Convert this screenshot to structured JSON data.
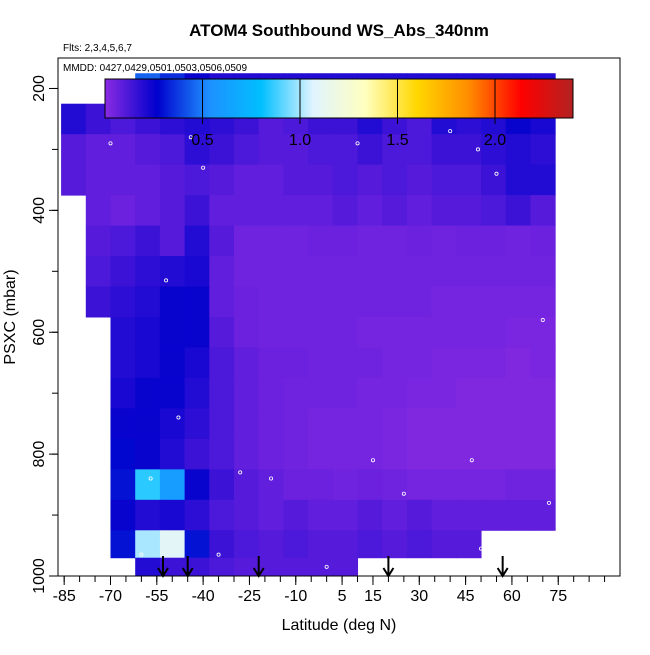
{
  "chart_data": {
    "type": "heatmap",
    "title": "ATOM4 Southbound WS_Abs_340nm",
    "subtitle_flights": "Flts: 2,3,4,5,6,7",
    "subtitle_dates": "MMDD: 0427,0429,0501,0503,0506,0509",
    "xlabel": "Latitude (deg N)",
    "ylabel": "PSXC (mbar)",
    "xlim": [
      -87,
      95
    ],
    "ylim": [
      1000,
      150
    ],
    "y_reversed": true,
    "x_ticks": [
      -85,
      -70,
      -55,
      -40,
      -25,
      -10,
      5,
      15,
      30,
      45,
      60,
      75
    ],
    "x_tick_labels": [
      "-85",
      "-70",
      "-55",
      "-40",
      "-25",
      "-10",
      "5",
      "15",
      "30",
      "45",
      "60",
      "75"
    ],
    "y_ticks": [
      200,
      400,
      600,
      800,
      1000
    ],
    "y_tick_labels": [
      "200",
      "400",
      "600",
      "800",
      "1000"
    ],
    "colorbar": {
      "range": [
        0,
        2.4
      ],
      "ticks": [
        0.5,
        1.0,
        1.5,
        2.0
      ],
      "tick_labels": [
        "0.5",
        "1.0",
        "1.5",
        "2.0"
      ],
      "colors": [
        "#8a2be2",
        "#0000cd",
        "#1e90ff",
        "#00bfff",
        "#e0f4ff",
        "#ffffc0",
        "#ffd700",
        "#ff8c00",
        "#ff0000",
        "#b22222"
      ]
    },
    "cross_section": {
      "note": "approximate gridded values of WS_Abs_340nm",
      "latitudes": [
        -82,
        -74,
        -66,
        -58,
        -50,
        -42,
        -34,
        -26,
        -18,
        -10,
        -2,
        6,
        14,
        22,
        30,
        38,
        46,
        54,
        62,
        70
      ],
      "pressures": [
        200,
        250,
        300,
        350,
        400,
        450,
        500,
        550,
        600,
        650,
        700,
        750,
        800,
        850,
        900,
        950,
        990
      ],
      "values": [
        [
          null,
          null,
          null,
          0.45,
          0.35,
          0.25,
          0.2,
          0.2,
          0.2,
          0.2,
          0.2,
          0.2,
          0.2,
          0.2,
          0.2,
          0.2,
          0.2,
          0.2,
          0.2,
          0.2
        ],
        [
          0.2,
          0.15,
          0.12,
          0.15,
          0.18,
          0.2,
          0.18,
          0.15,
          0.1,
          0.12,
          0.15,
          0.15,
          0.2,
          0.15,
          0.12,
          0.2,
          0.18,
          0.2,
          0.25,
          0.22
        ],
        [
          0.1,
          0.08,
          0.08,
          0.1,
          0.12,
          0.18,
          0.15,
          0.12,
          0.1,
          0.1,
          0.12,
          0.12,
          0.15,
          0.12,
          0.12,
          0.15,
          0.15,
          0.18,
          0.2,
          0.18
        ],
        [
          0.1,
          0.08,
          0.08,
          0.08,
          0.1,
          0.12,
          0.1,
          0.08,
          0.08,
          0.1,
          0.1,
          0.12,
          0.1,
          0.12,
          0.1,
          0.12,
          0.12,
          0.15,
          0.2,
          0.2
        ],
        [
          null,
          0.08,
          0.06,
          0.08,
          0.1,
          0.15,
          0.08,
          0.08,
          0.08,
          0.08,
          0.08,
          0.1,
          0.08,
          0.1,
          0.08,
          0.1,
          0.1,
          0.12,
          0.15,
          0.1
        ],
        [
          null,
          0.1,
          0.12,
          0.15,
          0.1,
          0.2,
          0.1,
          0.05,
          0.05,
          0.05,
          0.06,
          0.06,
          0.05,
          0.05,
          0.06,
          0.05,
          0.06,
          0.06,
          0.05,
          0.06
        ],
        [
          null,
          0.12,
          0.15,
          0.18,
          0.2,
          0.22,
          0.08,
          0.05,
          0.05,
          0.05,
          0.05,
          0.05,
          0.05,
          0.05,
          0.05,
          0.05,
          0.05,
          0.05,
          0.05,
          0.05
        ],
        [
          null,
          0.15,
          0.18,
          0.2,
          0.25,
          0.25,
          0.08,
          0.06,
          0.05,
          0.05,
          0.05,
          0.05,
          0.05,
          0.05,
          0.05,
          0.04,
          0.04,
          0.04,
          0.04,
          0.04
        ],
        [
          null,
          null,
          0.2,
          0.22,
          0.25,
          0.25,
          0.1,
          0.06,
          0.05,
          0.05,
          0.05,
          0.05,
          0.04,
          0.04,
          0.04,
          0.04,
          0.04,
          0.04,
          0.03,
          0.03
        ],
        [
          null,
          null,
          0.2,
          0.22,
          0.25,
          0.22,
          0.12,
          0.08,
          0.06,
          0.06,
          0.05,
          0.05,
          0.05,
          0.04,
          0.04,
          0.03,
          0.03,
          0.03,
          0.02,
          0.03
        ],
        [
          null,
          null,
          0.22,
          0.25,
          0.25,
          0.2,
          0.12,
          0.08,
          0.06,
          0.05,
          0.05,
          0.05,
          0.04,
          0.04,
          0.03,
          0.03,
          0.02,
          0.02,
          0.02,
          0.02
        ],
        [
          null,
          null,
          0.25,
          0.25,
          0.22,
          0.18,
          0.12,
          0.08,
          0.06,
          0.05,
          0.04,
          0.04,
          0.04,
          0.03,
          0.02,
          0.02,
          0.02,
          0.02,
          0.02,
          0.02
        ],
        [
          null,
          null,
          0.28,
          0.25,
          0.2,
          0.15,
          0.12,
          0.08,
          0.06,
          0.05,
          0.04,
          0.04,
          0.04,
          0.03,
          0.02,
          0.02,
          0.02,
          0.02,
          0.02,
          0.02
        ],
        [
          null,
          null,
          0.3,
          0.85,
          0.6,
          0.25,
          0.15,
          0.1,
          0.08,
          0.06,
          0.06,
          0.05,
          0.06,
          0.05,
          0.04,
          0.04,
          0.04,
          0.04,
          0.05,
          0.05
        ],
        [
          null,
          null,
          0.25,
          0.2,
          0.22,
          0.18,
          0.12,
          0.1,
          0.08,
          0.1,
          0.08,
          0.08,
          0.1,
          0.08,
          0.1,
          0.08,
          0.08,
          0.08,
          0.08,
          0.08
        ],
        [
          null,
          null,
          0.3,
          1.0,
          1.1,
          0.3,
          0.15,
          0.12,
          0.1,
          0.12,
          0.1,
          0.1,
          0.12,
          0.1,
          0.12,
          0.1,
          0.1,
          null,
          null,
          null
        ],
        [
          null,
          null,
          null,
          0.2,
          0.15,
          0.15,
          0.12,
          0.1,
          0.1,
          0.1,
          0.1,
          0.1,
          null,
          null,
          null,
          null,
          null,
          null,
          null,
          null
        ]
      ]
    },
    "markers_latitude": [
      -53,
      -45,
      -22,
      20,
      57
    ],
    "sample_points": [
      {
        "lat": -58,
        "p": 240
      },
      {
        "lat": -44,
        "p": 195
      },
      {
        "lat": -66,
        "p": 225
      },
      {
        "lat": -70,
        "p": 290
      },
      {
        "lat": -25,
        "p": 210
      },
      {
        "lat": -10,
        "p": 225
      },
      {
        "lat": 10,
        "p": 290
      },
      {
        "lat": 40,
        "p": 270
      },
      {
        "lat": 49,
        "p": 300
      },
      {
        "lat": 55,
        "p": 340
      },
      {
        "lat": -44,
        "p": 280
      },
      {
        "lat": -40,
        "p": 330
      },
      {
        "lat": -52,
        "p": 515
      },
      {
        "lat": -48,
        "p": 740
      },
      {
        "lat": -57,
        "p": 840
      },
      {
        "lat": -28,
        "p": 830
      },
      {
        "lat": -18,
        "p": 840
      },
      {
        "lat": 15,
        "p": 810
      },
      {
        "lat": 25,
        "p": 865
      },
      {
        "lat": 47,
        "p": 810
      },
      {
        "lat": 70,
        "p": 580
      },
      {
        "lat": 72,
        "p": 880
      },
      {
        "lat": -60,
        "p": 965
      },
      {
        "lat": -35,
        "p": 965
      },
      {
        "lat": 0,
        "p": 985
      },
      {
        "lat": 50,
        "p": 955
      }
    ]
  }
}
